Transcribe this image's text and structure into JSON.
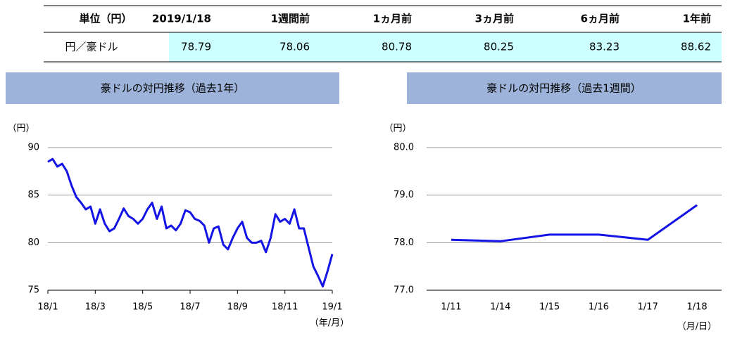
{
  "table": {
    "header": [
      "単位（円）",
      "2019/1/18",
      "1週間前",
      "1ヵ月前",
      "3ヵ月前",
      "6ヵ月前",
      "1年前"
    ],
    "rows": [
      [
        "円／豪ドル",
        78.79,
        78.06,
        80.78,
        80.25,
        83.23,
        88.62
      ]
    ]
  },
  "chart_data": [
    {
      "type": "line",
      "title": "豪ドルの対円推移（過去1年）",
      "y_label": "（円）",
      "x_label": "（年/月）",
      "categories": [
        "18/1",
        null,
        null,
        null,
        null,
        null,
        null,
        null,
        null,
        null,
        "18/3",
        null,
        null,
        null,
        null,
        null,
        null,
        null,
        null,
        null,
        "18/5",
        null,
        null,
        null,
        null,
        null,
        null,
        null,
        null,
        null,
        "18/7",
        null,
        null,
        null,
        null,
        null,
        null,
        null,
        null,
        null,
        "18/9",
        null,
        null,
        null,
        null,
        null,
        null,
        null,
        null,
        null,
        "18/11",
        null,
        null,
        null,
        null,
        null,
        null,
        null,
        null,
        null,
        "19/1"
      ],
      "values": [
        88.5,
        88.8,
        88.0,
        88.3,
        87.5,
        86.0,
        84.8,
        84.2,
        83.5,
        83.8,
        82.0,
        83.5,
        82.0,
        81.2,
        81.5,
        82.5,
        83.6,
        82.8,
        82.5,
        82.0,
        82.5,
        83.5,
        84.2,
        82.5,
        83.8,
        81.5,
        81.8,
        81.3,
        82.0,
        83.4,
        83.2,
        82.5,
        82.3,
        81.8,
        80.0,
        81.5,
        81.7,
        79.8,
        79.3,
        80.5,
        81.5,
        82.2,
        80.5,
        80.0,
        80.0,
        80.2,
        79.0,
        80.5,
        83.0,
        82.2,
        82.5,
        82.0,
        83.5,
        81.5,
        81.5,
        79.5,
        77.5,
        76.5,
        75.4,
        77.0,
        78.8
      ],
      "color": "#1414e6",
      "ylim": [
        75,
        90
      ],
      "yticks": [
        75,
        80,
        85,
        90
      ],
      "grid": true
    },
    {
      "type": "line",
      "title": "豪ドルの対円推移（過去1週間）",
      "y_label": "（円）",
      "x_label": "（月/日）",
      "categories": [
        "1/11",
        "1/14",
        "1/15",
        "1/16",
        "1/17",
        "1/18"
      ],
      "values": [
        78.06,
        78.03,
        78.17,
        78.17,
        78.06,
        78.79
      ],
      "color": "#1414e6",
      "ylim": [
        77,
        80
      ],
      "yticks": [
        {
          "value": 77,
          "label": "77.0"
        },
        {
          "value": 78,
          "label": "78.0"
        },
        {
          "value": 79,
          "label": "79.0"
        },
        {
          "value": 80,
          "label": "80.0"
        }
      ],
      "grid": true
    }
  ]
}
